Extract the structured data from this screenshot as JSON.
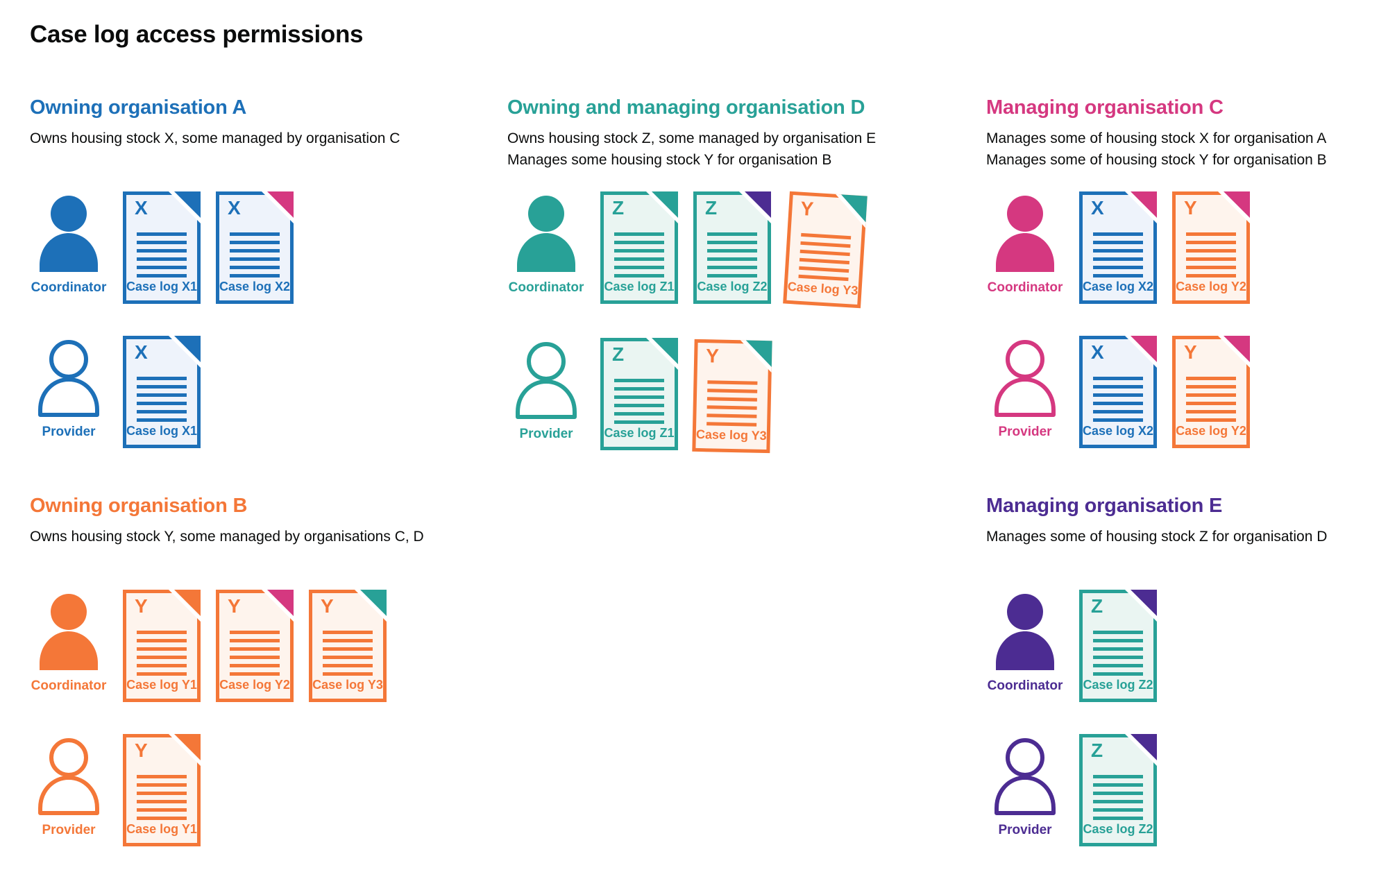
{
  "page": {
    "title": "Case log access permissions"
  },
  "colors": {
    "blue": "#1d70b8",
    "teal": "#28a197",
    "orange": "#f47738",
    "pink": "#d53880",
    "purple": "#4c2c92",
    "text": "#0b0c0c"
  },
  "doc_fills": {
    "blue": "#eef3fb",
    "teal": "#eaf5f2",
    "orange": "#fef4ed"
  },
  "sections": [
    {
      "id": "org-a",
      "color": "blue",
      "title": "Owning organisation A",
      "description": [
        "Owns housing stock X, some managed by organisation C"
      ],
      "rows": [
        {
          "role": "Coordinator",
          "person": "filled",
          "docs": [
            {
              "letter": "X",
              "label": "Case log X1",
              "doc_color": "blue",
              "corner_color": "blue"
            },
            {
              "letter": "X",
              "label": "Case log X2",
              "doc_color": "blue",
              "corner_color": "pink"
            }
          ]
        },
        {
          "role": "Provider",
          "person": "outline",
          "docs": [
            {
              "letter": "X",
              "label": "Case log X1",
              "doc_color": "blue",
              "corner_color": "blue"
            }
          ]
        }
      ]
    },
    {
      "id": "org-d",
      "color": "teal",
      "title": "Owning and managing organisation D",
      "description": [
        "Owns housing stock Z, some managed by organisation E",
        "Manages some housing stock Y for organisation B"
      ],
      "rows": [
        {
          "role": "Coordinator",
          "person": "filled",
          "docs": [
            {
              "letter": "Z",
              "label": "Case log Z1",
              "doc_color": "teal",
              "corner_color": "teal"
            },
            {
              "letter": "Z",
              "label": "Case log Z2",
              "doc_color": "teal",
              "corner_color": "purple"
            },
            {
              "letter": "Y",
              "label": "Case log Y3",
              "doc_color": "orange",
              "corner_color": "teal",
              "tilt": 3.5
            }
          ]
        },
        {
          "role": "Provider",
          "person": "outline",
          "docs": [
            {
              "letter": "Z",
              "label": "Case log Z1",
              "doc_color": "teal",
              "corner_color": "teal"
            },
            {
              "letter": "Y",
              "label": "Case log Y3",
              "doc_color": "orange",
              "corner_color": "teal",
              "tilt": 1.2
            }
          ]
        }
      ]
    },
    {
      "id": "org-c",
      "color": "pink",
      "title": "Managing organisation C",
      "description": [
        "Manages some of housing stock X for organisation A",
        "Manages some of housing stock Y for organisation B"
      ],
      "rows": [
        {
          "role": "Coordinator",
          "person": "filled",
          "docs": [
            {
              "letter": "X",
              "label": "Case log X2",
              "doc_color": "blue",
              "corner_color": "pink"
            },
            {
              "letter": "Y",
              "label": "Case log Y2",
              "doc_color": "orange",
              "corner_color": "pink"
            }
          ]
        },
        {
          "role": "Provider",
          "person": "outline",
          "docs": [
            {
              "letter": "X",
              "label": "Case log X2",
              "doc_color": "blue",
              "corner_color": "pink"
            },
            {
              "letter": "Y",
              "label": "Case log Y2",
              "doc_color": "orange",
              "corner_color": "pink"
            }
          ]
        }
      ]
    },
    {
      "id": "org-b",
      "color": "orange",
      "title": "Owning organisation B",
      "description": [
        "Owns housing stock Y, some managed by organisations C, D"
      ],
      "rows": [
        {
          "role": "Coordinator",
          "person": "filled",
          "docs": [
            {
              "letter": "Y",
              "label": "Case log Y1",
              "doc_color": "orange",
              "corner_color": "orange"
            },
            {
              "letter": "Y",
              "label": "Case log Y2",
              "doc_color": "orange",
              "corner_color": "pink"
            },
            {
              "letter": "Y",
              "label": "Case log Y3",
              "doc_color": "orange",
              "corner_color": "teal"
            }
          ]
        },
        {
          "role": "Provider",
          "person": "outline",
          "docs": [
            {
              "letter": "Y",
              "label": "Case log Y1",
              "doc_color": "orange",
              "corner_color": "orange"
            }
          ]
        }
      ]
    },
    {
      "id": "org-e",
      "color": "purple",
      "title": "Managing organisation E",
      "description": [
        "Manages some of housing stock Z for organisation D"
      ],
      "rows": [
        {
          "role": "Coordinator",
          "person": "filled",
          "docs": [
            {
              "letter": "Z",
              "label": "Case log Z2",
              "doc_color": "teal",
              "corner_color": "purple"
            }
          ]
        },
        {
          "role": "Provider",
          "person": "outline",
          "docs": [
            {
              "letter": "Z",
              "label": "Case log Z2",
              "doc_color": "teal",
              "corner_color": "purple"
            }
          ]
        }
      ]
    }
  ]
}
